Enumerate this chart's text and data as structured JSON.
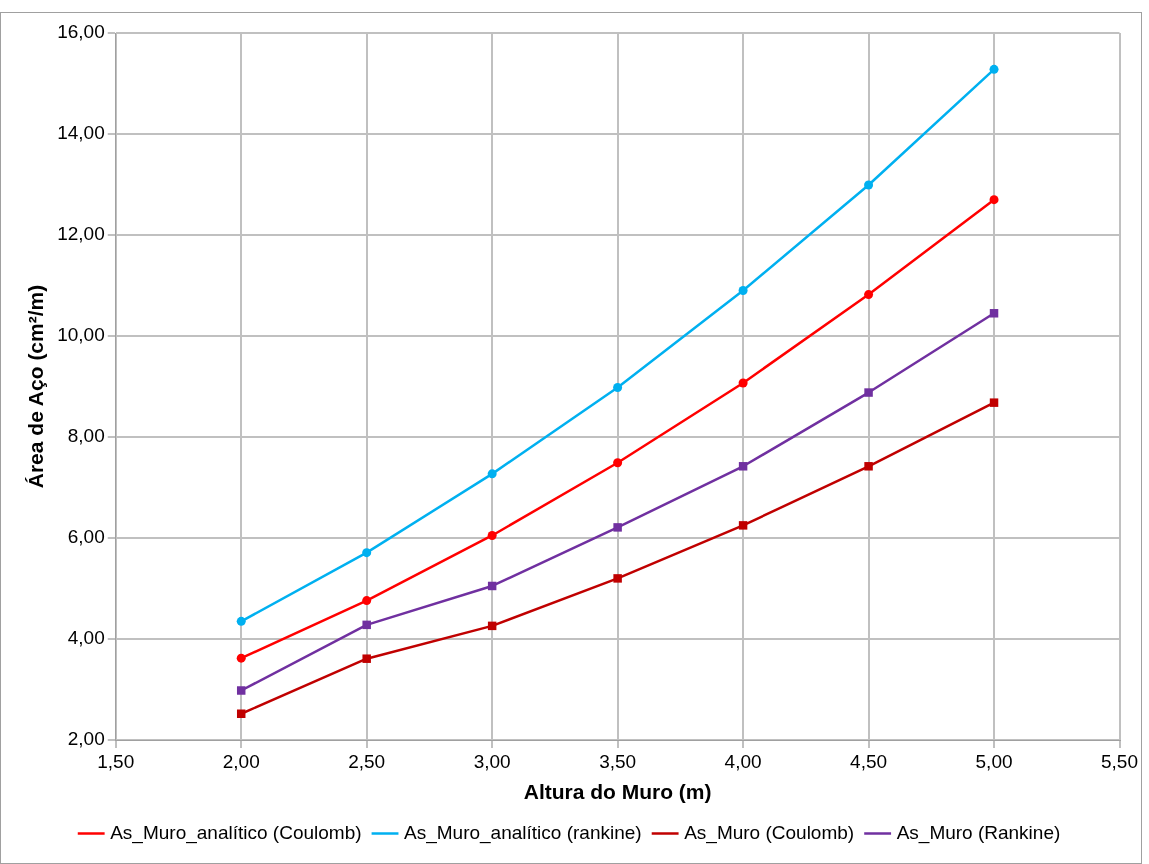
{
  "chart_data": {
    "type": "line",
    "xlabel": "Altura do Muro (m)",
    "ylabel": "Área de Aço (cm²/m)",
    "x": [
      2.0,
      2.5,
      3.0,
      3.5,
      4.0,
      4.5,
      5.0
    ],
    "xlim": [
      1.5,
      5.5
    ],
    "xticks": [
      {
        "value": 1.5,
        "label": "1,50"
      },
      {
        "value": 2,
        "label": "2,00"
      },
      {
        "value": 2.5,
        "label": "2,50"
      },
      {
        "value": 3,
        "label": "3,00"
      },
      {
        "value": 3.5,
        "label": "3,50"
      },
      {
        "value": 4,
        "label": "4,00"
      },
      {
        "value": 4.5,
        "label": "4,50"
      },
      {
        "value": 5,
        "label": "5,00"
      },
      {
        "value": 5.5,
        "label": "5,50"
      }
    ],
    "ylim": [
      2,
      16
    ],
    "yticks": [
      {
        "value": 2,
        "label": "2,00"
      },
      {
        "value": 4,
        "label": "4,00"
      },
      {
        "value": 6,
        "label": "6,00"
      },
      {
        "value": 8,
        "label": "8,00"
      },
      {
        "value": 10,
        "label": "10,00"
      },
      {
        "value": 12,
        "label": "12,00"
      },
      {
        "value": 14,
        "label": "14,00"
      },
      {
        "value": 16,
        "label": "16,00"
      }
    ],
    "grid": true,
    "legend": "bottom",
    "series": [
      {
        "name": "As_Muro_analítico (Coulomb)",
        "color": "#ff0000",
        "marker": "circle",
        "values": [
          3.62,
          4.76,
          6.05,
          7.49,
          9.07,
          10.82,
          12.7
        ]
      },
      {
        "name": "As_Muro_analítico (rankine)",
        "color": "#00b0f0",
        "marker": "circle",
        "values": [
          4.35,
          5.71,
          7.27,
          8.98,
          10.9,
          12.99,
          15.28
        ]
      },
      {
        "name": "As_Muro (Coulomb)",
        "color": "#c00000",
        "marker": "square",
        "values": [
          2.52,
          3.61,
          4.26,
          5.2,
          6.25,
          7.42,
          8.68
        ]
      },
      {
        "name": "As_Muro (Rankine)",
        "color": "#7030a0",
        "marker": "square",
        "values": [
          2.98,
          4.28,
          5.05,
          6.21,
          7.42,
          8.88,
          10.45
        ]
      }
    ]
  }
}
